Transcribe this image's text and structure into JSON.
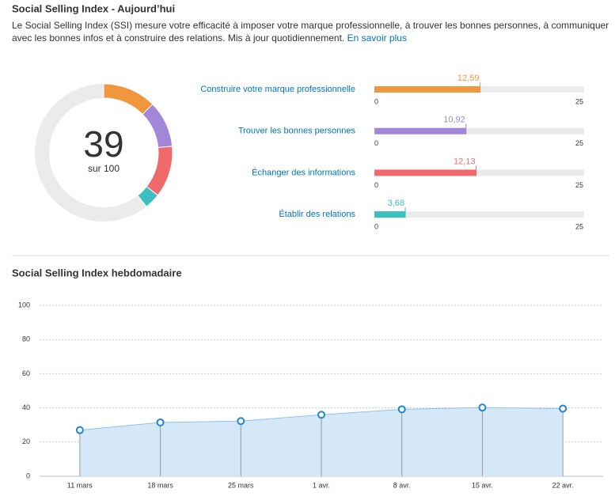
{
  "header": {
    "title": "Social Selling Index - Aujourd’hui",
    "description_lines": [
      "Le Social Selling Index (SSI) mesure votre efficacité à imposer votre marque professionnelle, à trouver les bonnes personnes, à communiquer",
      "avec les bonnes infos et à construire des relations. Mis à jour quotidiennement."
    ],
    "link": "En savoir plus"
  },
  "chart_data": [
    {
      "type": "donut",
      "center_value": 39,
      "center_label": "sur 100",
      "range": [
        0,
        100
      ],
      "values": [
        12.59,
        10.92,
        12.13,
        3.68
      ],
      "colors": [
        "#f0963c",
        "#a287d8",
        "#ef6b6b",
        "#3bbfbf"
      ]
    },
    {
      "type": "bar",
      "categories": [
        "Construire votre marque professionnelle",
        "Trouver les bonnes personnes",
        "Échanger des informations",
        "Établir des relations"
      ],
      "values": [
        12.59,
        10.92,
        12.13,
        3.68
      ],
      "value_labels": [
        "12,59",
        "10,92",
        "12,13",
        "3,68"
      ],
      "colors": [
        "#f0963c",
        "#a287d8",
        "#ef6b6b",
        "#3bbfbf"
      ],
      "xlim": [
        0,
        25
      ],
      "xticks": [
        0,
        25
      ]
    },
    {
      "type": "area",
      "title": "Social Selling Index hebdomadaire",
      "categories": [
        "11 mars",
        "18 mars",
        "25 mars",
        "1 avr.",
        "8 avr.",
        "15 avr.",
        "22 avr."
      ],
      "values": [
        27,
        31.5,
        32.3,
        36,
        39.2,
        40.2,
        39.6
      ],
      "color": "#1b87d6",
      "ylim": [
        0,
        100
      ],
      "yticks": [
        0,
        20,
        40,
        60,
        80,
        100
      ],
      "grid": true
    }
  ]
}
